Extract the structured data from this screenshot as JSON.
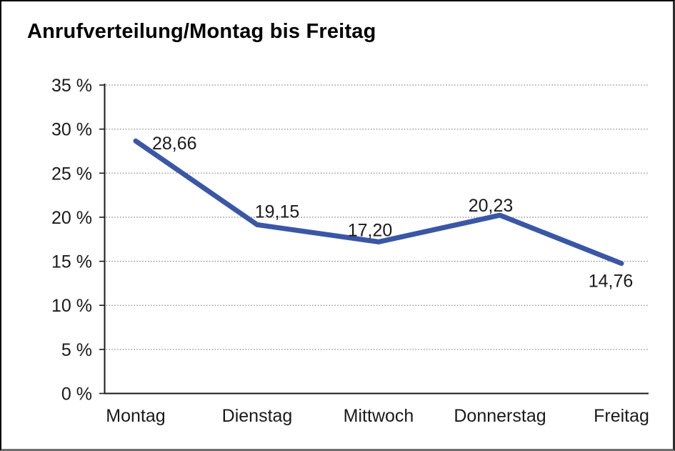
{
  "chart_data": {
    "type": "line",
    "title": "Anrufverteilung/Montag bis Freitag",
    "categories": [
      "Montag",
      "Dienstag",
      "Mittwoch",
      "Donnerstag",
      "Freitag"
    ],
    "values": [
      28.66,
      19.15,
      17.2,
      20.23,
      14.76
    ],
    "value_labels": [
      "28,66",
      "19,15",
      "17,20",
      "20,23",
      "14,76"
    ],
    "y_tick_values": [
      0,
      5,
      10,
      15,
      20,
      25,
      30,
      35
    ],
    "y_tick_labels": [
      "0 %",
      "5 %",
      "10 %",
      "15 %",
      "20 %",
      "25 %",
      "30 %",
      "35 %"
    ],
    "ylim": [
      0,
      35
    ],
    "xlabel": "",
    "ylabel": "",
    "legend": "none",
    "grid": "horizontal-dotted",
    "colors": {
      "line": "#3A57A5",
      "text": "#1a1a1a",
      "gridline": "#8a8a8a",
      "axis": "#1a1a1a",
      "background": "#ffffff"
    }
  }
}
